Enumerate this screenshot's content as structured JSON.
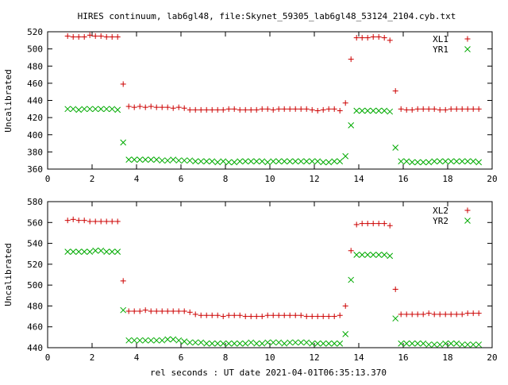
{
  "title": "HIRES continuum, lab6gl48, file:Skynet_59305_lab6gl48_53124_2104.cyb.txt",
  "xlabel": "rel seconds : UT date 2021-04-01T06:35:13.370",
  "colors": {
    "red": "#cc0000",
    "green": "#00aa00"
  },
  "chart_data": [
    {
      "type": "scatter",
      "ylabel": "Uncalibrated",
      "xlim": [
        0,
        20
      ],
      "ylim": [
        360,
        520
      ],
      "xticks": [
        0,
        2,
        4,
        6,
        8,
        10,
        12,
        14,
        16,
        18,
        20
      ],
      "yticks": [
        360,
        380,
        400,
        420,
        440,
        460,
        480,
        500,
        520
      ],
      "legend_position": "top-right",
      "series": [
        {
          "name": "XL1",
          "marker": "plus",
          "color": "#cc0000",
          "x": [
            0.9,
            1.15,
            1.4,
            1.65,
            1.9,
            2.15,
            2.4,
            2.65,
            2.9,
            3.15,
            3.4,
            3.65,
            3.9,
            4.15,
            4.4,
            4.65,
            4.9,
            5.15,
            5.4,
            5.65,
            5.9,
            6.15,
            6.4,
            6.65,
            6.9,
            7.15,
            7.4,
            7.65,
            7.9,
            8.15,
            8.4,
            8.65,
            8.9,
            9.15,
            9.4,
            9.65,
            9.9,
            10.15,
            10.4,
            10.65,
            10.9,
            11.15,
            11.4,
            11.65,
            11.9,
            12.15,
            12.4,
            12.65,
            12.9,
            13.15,
            13.4,
            13.65,
            13.9,
            14.15,
            14.4,
            14.65,
            14.9,
            15.15,
            15.4,
            15.65,
            15.9,
            16.15,
            16.4,
            16.65,
            16.9,
            17.15,
            17.4,
            17.65,
            17.9,
            18.15,
            18.4,
            18.65,
            18.9,
            19.15,
            19.4
          ],
          "y": [
            515,
            514,
            514,
            514,
            516,
            515,
            515,
            514,
            514,
            514,
            459,
            433,
            432,
            433,
            432,
            433,
            432,
            432,
            432,
            431,
            432,
            431,
            429,
            429,
            429,
            429,
            429,
            429,
            429,
            430,
            430,
            429,
            429,
            429,
            429,
            430,
            430,
            429,
            430,
            430,
            430,
            430,
            430,
            430,
            429,
            428,
            429,
            430,
            430,
            428,
            437,
            488,
            513,
            513,
            513,
            514,
            514,
            513,
            510,
            451,
            430,
            429,
            429,
            430,
            430,
            430,
            430,
            429,
            429,
            430,
            430,
            430,
            430,
            430,
            430
          ]
        },
        {
          "name": "YR1",
          "marker": "x",
          "color": "#00aa00",
          "x": [
            0.9,
            1.15,
            1.4,
            1.65,
            1.9,
            2.15,
            2.4,
            2.65,
            2.9,
            3.15,
            3.4,
            3.65,
            3.9,
            4.15,
            4.4,
            4.65,
            4.9,
            5.15,
            5.4,
            5.65,
            5.9,
            6.15,
            6.4,
            6.65,
            6.9,
            7.15,
            7.4,
            7.65,
            7.9,
            8.15,
            8.4,
            8.65,
            8.9,
            9.15,
            9.4,
            9.65,
            9.9,
            10.15,
            10.4,
            10.65,
            10.9,
            11.15,
            11.4,
            11.65,
            11.9,
            12.15,
            12.4,
            12.65,
            12.9,
            13.15,
            13.4,
            13.65,
            13.9,
            14.15,
            14.4,
            14.65,
            14.9,
            15.15,
            15.4,
            15.65,
            15.9,
            16.15,
            16.4,
            16.65,
            16.9,
            17.15,
            17.4,
            17.65,
            17.9,
            18.15,
            18.4,
            18.65,
            18.9,
            19.15,
            19.4
          ],
          "y": [
            430,
            430,
            429,
            430,
            430,
            430,
            430,
            430,
            430,
            429,
            391,
            371,
            371,
            371,
            371,
            371,
            371,
            370,
            370,
            371,
            370,
            370,
            370,
            369,
            369,
            369,
            369,
            368,
            369,
            368,
            368,
            369,
            369,
            369,
            369,
            369,
            368,
            369,
            369,
            369,
            369,
            369,
            369,
            369,
            369,
            369,
            368,
            368,
            369,
            369,
            375,
            411,
            428,
            428,
            428,
            428,
            428,
            428,
            427,
            385,
            369,
            369,
            368,
            368,
            368,
            368,
            369,
            369,
            369,
            369,
            369,
            369,
            369,
            369,
            368
          ]
        }
      ]
    },
    {
      "type": "scatter",
      "ylabel": "Uncalibrated",
      "xlim": [
        0,
        20
      ],
      "ylim": [
        440,
        580
      ],
      "xticks": [
        0,
        2,
        4,
        6,
        8,
        10,
        12,
        14,
        16,
        18,
        20
      ],
      "yticks": [
        440,
        460,
        480,
        500,
        520,
        540,
        560,
        580
      ],
      "legend_position": "top-right",
      "series": [
        {
          "name": "XL2",
          "marker": "plus",
          "color": "#cc0000",
          "x": [
            0.9,
            1.15,
            1.4,
            1.65,
            1.9,
            2.15,
            2.4,
            2.65,
            2.9,
            3.15,
            3.4,
            3.65,
            3.9,
            4.15,
            4.4,
            4.65,
            4.9,
            5.15,
            5.4,
            5.65,
            5.9,
            6.15,
            6.4,
            6.65,
            6.9,
            7.15,
            7.4,
            7.65,
            7.9,
            8.15,
            8.4,
            8.65,
            8.9,
            9.15,
            9.4,
            9.65,
            9.9,
            10.15,
            10.4,
            10.65,
            10.9,
            11.15,
            11.4,
            11.65,
            11.9,
            12.15,
            12.4,
            12.65,
            12.9,
            13.15,
            13.4,
            13.65,
            13.9,
            14.15,
            14.4,
            14.65,
            14.9,
            15.15,
            15.4,
            15.65,
            15.9,
            16.15,
            16.4,
            16.65,
            16.9,
            17.15,
            17.4,
            17.65,
            17.9,
            18.15,
            18.4,
            18.65,
            18.9,
            19.15,
            19.4
          ],
          "y": [
            562,
            563,
            562,
            562,
            561,
            561,
            561,
            561,
            561,
            561,
            504,
            475,
            475,
            475,
            476,
            475,
            475,
            475,
            475,
            475,
            475,
            475,
            474,
            472,
            471,
            471,
            471,
            471,
            470,
            471,
            471,
            471,
            470,
            470,
            470,
            470,
            471,
            471,
            471,
            471,
            471,
            471,
            471,
            470,
            470,
            470,
            470,
            470,
            470,
            471,
            480,
            533,
            558,
            559,
            559,
            559,
            559,
            559,
            557,
            496,
            472,
            472,
            472,
            472,
            472,
            473,
            472,
            472,
            472,
            472,
            472,
            472,
            473,
            473,
            473
          ]
        },
        {
          "name": "YR2",
          "marker": "x",
          "color": "#00aa00",
          "x": [
            0.9,
            1.15,
            1.4,
            1.65,
            1.9,
            2.15,
            2.4,
            2.65,
            2.9,
            3.15,
            3.4,
            3.65,
            3.9,
            4.15,
            4.4,
            4.65,
            4.9,
            5.15,
            5.4,
            5.65,
            5.9,
            6.15,
            6.4,
            6.65,
            6.9,
            7.15,
            7.4,
            7.65,
            7.9,
            8.15,
            8.4,
            8.65,
            8.9,
            9.15,
            9.4,
            9.65,
            9.9,
            10.15,
            10.4,
            10.65,
            10.9,
            11.15,
            11.4,
            11.65,
            11.9,
            12.15,
            12.4,
            12.65,
            12.9,
            13.15,
            13.4,
            13.65,
            13.9,
            14.15,
            14.4,
            14.65,
            14.9,
            15.15,
            15.4,
            15.65,
            15.9,
            16.15,
            16.4,
            16.65,
            16.9,
            17.15,
            17.4,
            17.65,
            17.9,
            18.15,
            18.4,
            18.65,
            18.9,
            19.15,
            19.4
          ],
          "y": [
            532,
            532,
            532,
            532,
            532,
            533,
            533,
            532,
            532,
            532,
            476,
            447,
            447,
            447,
            447,
            447,
            447,
            447,
            448,
            448,
            447,
            446,
            445,
            445,
            445,
            444,
            444,
            444,
            444,
            444,
            444,
            444,
            444,
            445,
            444,
            444,
            445,
            445,
            445,
            444,
            445,
            445,
            445,
            445,
            444,
            444,
            444,
            444,
            444,
            444,
            453,
            505,
            529,
            529,
            529,
            529,
            529,
            529,
            528,
            468,
            444,
            444,
            444,
            444,
            444,
            443,
            443,
            443,
            444,
            444,
            444,
            443,
            443,
            443,
            443
          ]
        }
      ]
    }
  ]
}
